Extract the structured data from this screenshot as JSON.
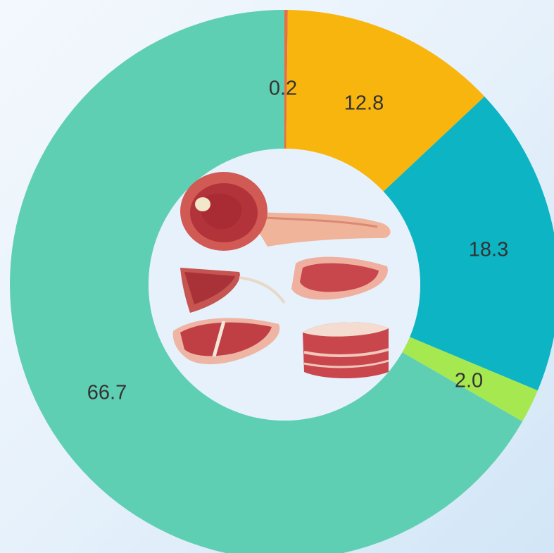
{
  "chart_data": {
    "type": "pie",
    "categories": [
      "",
      "",
      "",
      "",
      ""
    ],
    "values": [
      0.2,
      12.8,
      18.3,
      2.0,
      66.7
    ],
    "data_labels": [
      "0.2",
      "12.8",
      "18.3",
      "2.0",
      "66.7"
    ],
    "colors": [
      "#e8703f",
      "#f8b50e",
      "#0db4c4",
      "#a6e850",
      "#5fcfb3"
    ],
    "donut": true,
    "title": "",
    "legend": "none"
  },
  "center_image": {
    "icon": "meat-cuts-illustration",
    "background": "#e6f1fb"
  }
}
